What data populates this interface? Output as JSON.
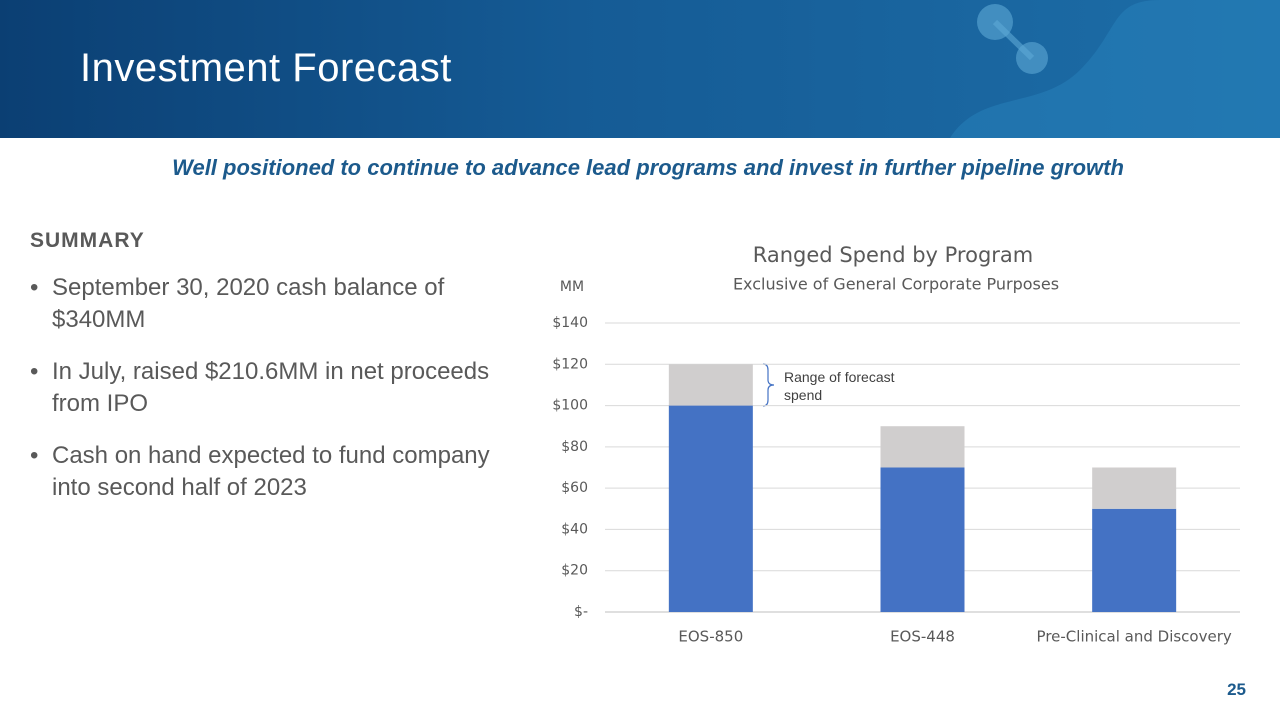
{
  "header": {
    "title": "Investment Forecast"
  },
  "subtitle": "Well positioned to continue to advance lead programs and invest in further pipeline growth",
  "summary": {
    "heading": "SUMMARY",
    "bullets": [
      "September 30, 2020 cash balance of $340MM",
      "In July, raised $210.6MM in net proceeds from IPO",
      "Cash on hand expected to fund company into second half of 2023"
    ]
  },
  "chart_data": {
    "type": "stacked-bar",
    "title": "Ranged Spend by Program",
    "subtitle": "Exclusive of General Corporate Purposes",
    "y_label": "MM",
    "annotation": "Range of forecast spend",
    "categories": [
      "EOS-850",
      "EOS-448",
      "Pre-Clinical and Discovery"
    ],
    "series": [
      {
        "color": "#4472c4",
        "values": [
          100,
          70,
          50
        ]
      },
      {
        "color": "#d0cece",
        "values": [
          20,
          20,
          20
        ]
      }
    ],
    "ylim": [
      0,
      140
    ],
    "yticks": [
      {
        "value": 0,
        "label": "$-"
      },
      {
        "value": 20,
        "label": "$20"
      },
      {
        "value": 40,
        "label": "$40"
      },
      {
        "value": 60,
        "label": "$60"
      },
      {
        "value": 80,
        "label": "$80"
      },
      {
        "value": 100,
        "label": "$100"
      },
      {
        "value": 120,
        "label": "$120"
      },
      {
        "value": 140,
        "label": "$140"
      }
    ],
    "grid": true
  },
  "page_number": "25"
}
